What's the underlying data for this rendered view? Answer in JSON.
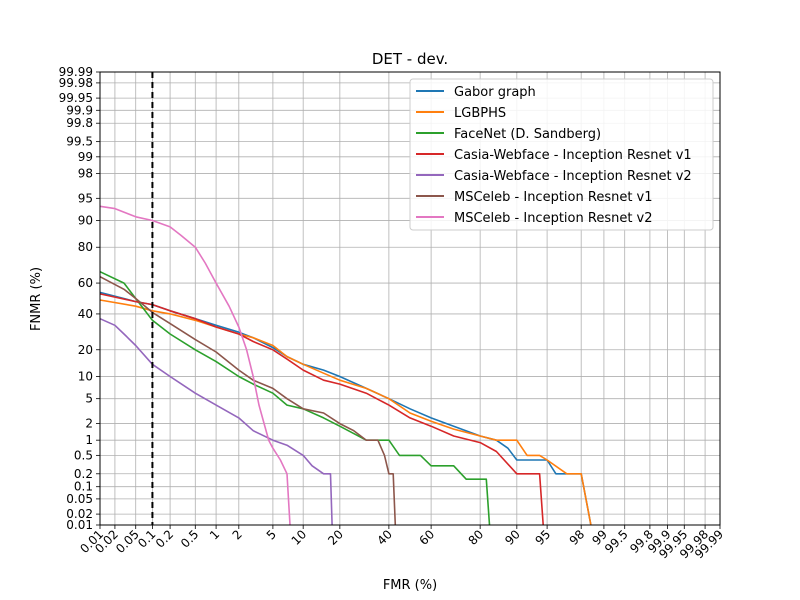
{
  "chart_data": {
    "type": "line",
    "title": "DET - dev.",
    "xlabel": "FMR (%)",
    "ylabel": "FNMR (%)",
    "scale": "normal-deviate (probit) on both axes",
    "xlim": [
      0.01,
      99.99
    ],
    "ylim": [
      0.01,
      99.99
    ],
    "x_ticks": [
      "0.01",
      "0.02",
      "0.05",
      "0.1",
      "0.2",
      "0.5",
      "1",
      "2",
      "5",
      "10",
      "20",
      "40",
      "60",
      "80",
      "90",
      "95",
      "98",
      "99",
      "99.5",
      "99.8",
      "99.9",
      "99.95",
      "99.98",
      "99.99"
    ],
    "y_ticks": [
      "0.01",
      "0.02",
      "0.05",
      "0.1",
      "0.2",
      "0.5",
      "1",
      "2",
      "5",
      "10",
      "20",
      "40",
      "60",
      "80",
      "90",
      "95",
      "98",
      "99",
      "99.5",
      "99.8",
      "99.9",
      "99.95",
      "99.98",
      "99.99"
    ],
    "grid": true,
    "legend_position": "top-right",
    "vertical_reference_line": {
      "x": 0.1,
      "style": "dashed",
      "color": "#000000"
    },
    "series": [
      {
        "name": "Gabor graph",
        "color": "#1f77b4",
        "points": [
          [
            0.01,
            54
          ],
          [
            0.05,
            48
          ],
          [
            0.1,
            46
          ],
          [
            0.2,
            42
          ],
          [
            0.5,
            37
          ],
          [
            1,
            33
          ],
          [
            2,
            29
          ],
          [
            3,
            26
          ],
          [
            5,
            21
          ],
          [
            7,
            17
          ],
          [
            10,
            14
          ],
          [
            15,
            12
          ],
          [
            20,
            10
          ],
          [
            30,
            7
          ],
          [
            40,
            5
          ],
          [
            50,
            3.5
          ],
          [
            60,
            2.5
          ],
          [
            70,
            1.8
          ],
          [
            80,
            1.2
          ],
          [
            85,
            1
          ],
          [
            88,
            0.7
          ],
          [
            90,
            0.4
          ],
          [
            93,
            0.4
          ],
          [
            95,
            0.4
          ],
          [
            96,
            0.2
          ],
          [
            97,
            0.2
          ],
          [
            98,
            0.2
          ],
          [
            98.5,
            0.01
          ]
        ]
      },
      {
        "name": "LGBPHS",
        "color": "#ff7f0e",
        "points": [
          [
            0.01,
            49
          ],
          [
            0.05,
            45
          ],
          [
            0.1,
            42
          ],
          [
            0.2,
            40
          ],
          [
            0.5,
            36
          ],
          [
            1,
            32
          ],
          [
            2,
            28
          ],
          [
            3,
            26
          ],
          [
            5,
            22
          ],
          [
            7,
            17
          ],
          [
            10,
            14
          ],
          [
            15,
            11
          ],
          [
            20,
            9
          ],
          [
            30,
            7
          ],
          [
            40,
            5
          ],
          [
            50,
            3
          ],
          [
            60,
            2.2
          ],
          [
            70,
            1.6
          ],
          [
            80,
            1.2
          ],
          [
            85,
            1
          ],
          [
            90,
            1
          ],
          [
            92,
            0.5
          ],
          [
            94,
            0.5
          ],
          [
            95,
            0.4
          ],
          [
            97,
            0.2
          ],
          [
            98,
            0.2
          ],
          [
            98.5,
            0.01
          ]
        ]
      },
      {
        "name": "FaceNet (D. Sandberg)",
        "color": "#2ca02c",
        "points": [
          [
            0.01,
            67
          ],
          [
            0.03,
            60
          ],
          [
            0.05,
            50
          ],
          [
            0.1,
            36
          ],
          [
            0.2,
            28
          ],
          [
            0.5,
            20
          ],
          [
            1,
            15
          ],
          [
            2,
            10
          ],
          [
            3,
            8
          ],
          [
            5,
            6
          ],
          [
            7,
            4
          ],
          [
            10,
            3.5
          ],
          [
            15,
            2.5
          ],
          [
            20,
            1.8
          ],
          [
            30,
            1
          ],
          [
            40,
            1
          ],
          [
            45,
            0.5
          ],
          [
            55,
            0.5
          ],
          [
            60,
            0.3
          ],
          [
            70,
            0.3
          ],
          [
            75,
            0.15
          ],
          [
            82,
            0.15
          ],
          [
            83,
            0.01
          ]
        ]
      },
      {
        "name": "Casia-Webface - Inception Resnet v1",
        "color": "#d62728",
        "points": [
          [
            0.01,
            53
          ],
          [
            0.05,
            48
          ],
          [
            0.1,
            46
          ],
          [
            0.2,
            42
          ],
          [
            0.5,
            37
          ],
          [
            1,
            32
          ],
          [
            2,
            28
          ],
          [
            3,
            24
          ],
          [
            5,
            20
          ],
          [
            7,
            16
          ],
          [
            10,
            12
          ],
          [
            15,
            9
          ],
          [
            20,
            8
          ],
          [
            30,
            6
          ],
          [
            40,
            4
          ],
          [
            50,
            2.5
          ],
          [
            60,
            1.8
          ],
          [
            70,
            1.2
          ],
          [
            80,
            0.9
          ],
          [
            85,
            0.6
          ],
          [
            90,
            0.2
          ],
          [
            93,
            0.2
          ],
          [
            94,
            0.2
          ],
          [
            94.5,
            0.01
          ]
        ]
      },
      {
        "name": "Casia-Webface - Inception Resnet v2",
        "color": "#9467bd",
        "points": [
          [
            0.01,
            37
          ],
          [
            0.02,
            33
          ],
          [
            0.03,
            28
          ],
          [
            0.05,
            22
          ],
          [
            0.1,
            14
          ],
          [
            0.2,
            10
          ],
          [
            0.5,
            6
          ],
          [
            1,
            4
          ],
          [
            2,
            2.5
          ],
          [
            3,
            1.5
          ],
          [
            5,
            1
          ],
          [
            7,
            0.8
          ],
          [
            10,
            0.5
          ],
          [
            12,
            0.3
          ],
          [
            15,
            0.2
          ],
          [
            17,
            0.2
          ],
          [
            17.5,
            0.01
          ]
        ]
      },
      {
        "name": "MSCeleb - Inception Resnet v1",
        "color": "#8c564b",
        "points": [
          [
            0.01,
            64
          ],
          [
            0.03,
            56
          ],
          [
            0.05,
            50
          ],
          [
            0.1,
            41
          ],
          [
            0.2,
            34
          ],
          [
            0.5,
            25
          ],
          [
            1,
            19
          ],
          [
            2,
            12
          ],
          [
            3,
            9
          ],
          [
            5,
            7
          ],
          [
            7,
            5
          ],
          [
            10,
            3.5
          ],
          [
            15,
            3
          ],
          [
            20,
            2
          ],
          [
            25,
            1.5
          ],
          [
            30,
            1
          ],
          [
            35,
            1
          ],
          [
            38,
            0.5
          ],
          [
            40,
            0.2
          ],
          [
            42,
            0.2
          ],
          [
            43,
            0.01
          ]
        ]
      },
      {
        "name": "MSCeleb - Inception Resnet v2",
        "color": "#e377c2",
        "points": [
          [
            0.01,
            93.5
          ],
          [
            0.02,
            93
          ],
          [
            0.05,
            91
          ],
          [
            0.1,
            90
          ],
          [
            0.2,
            88
          ],
          [
            0.3,
            85
          ],
          [
            0.5,
            80
          ],
          [
            0.7,
            72
          ],
          [
            1,
            60
          ],
          [
            1.5,
            45
          ],
          [
            2,
            32
          ],
          [
            2.5,
            20
          ],
          [
            3,
            10
          ],
          [
            3.5,
            4
          ],
          [
            4,
            2
          ],
          [
            4.5,
            1
          ],
          [
            5,
            0.7
          ],
          [
            6,
            0.4
          ],
          [
            7,
            0.2
          ],
          [
            7.5,
            0.01
          ]
        ]
      }
    ]
  }
}
